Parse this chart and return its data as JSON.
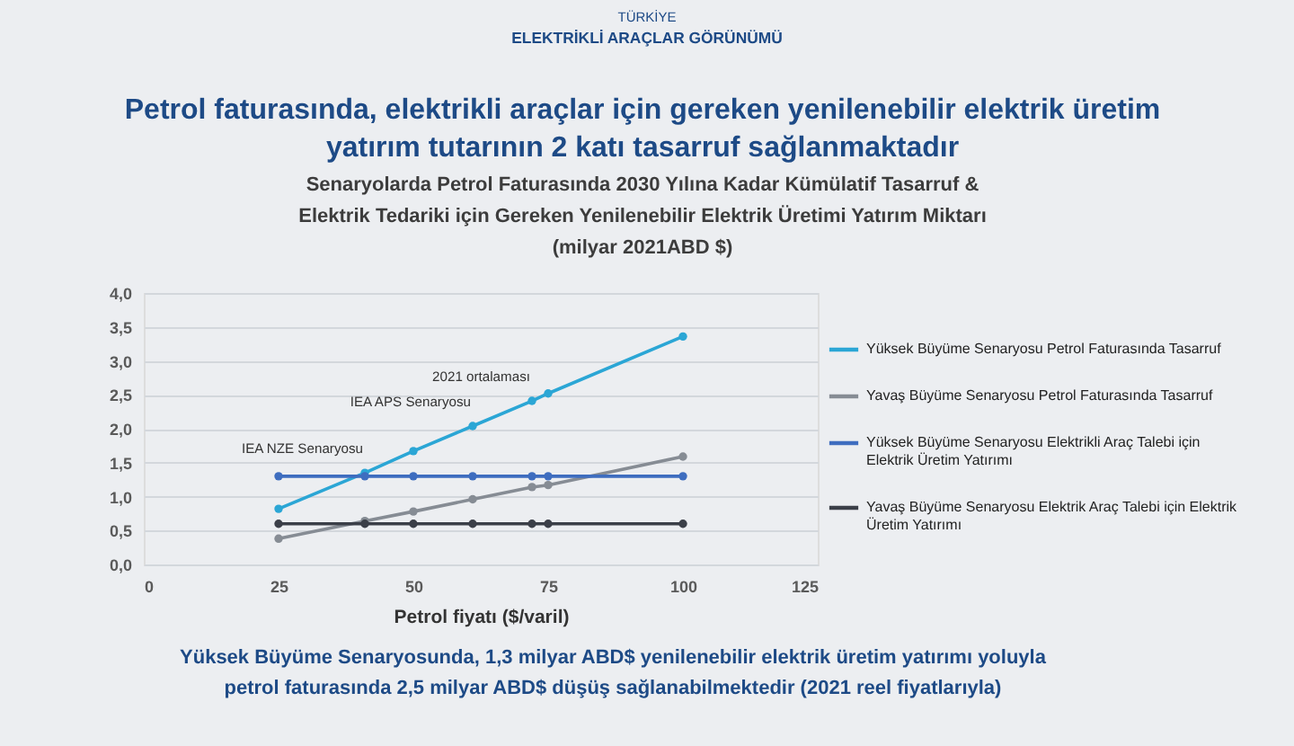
{
  "chart_data": {
    "type": "line",
    "title": "Petrol faturasında, elektrikli araçlar için gereken yenilenebilir elektrik üretim yatırım tutarının 2 katı tasarruf sağlanmaktadır",
    "subtitle": "Senaryolarda Petrol Faturasında 2030 Yılına Kadar Kümülatif Tasarruf & Elektrik Tedariki için Gereken Yenilenebilir Elektrik Üretimi Yatırım Miktarı (milyar 2021ABD $)",
    "xlabel": "Petrol fiyatı ($/varil)",
    "x": [
      25,
      41,
      50,
      61,
      72,
      75,
      100
    ],
    "series": [
      {
        "name": "Yüksek Büyüme Senaryosu Petrol Faturasında Tasarruf",
        "color": "#2ba6d5",
        "values": [
          0.82,
          1.35,
          1.67,
          2.04,
          2.41,
          2.52,
          3.36
        ]
      },
      {
        "name": "Yavaş Büyüme Senaryosu Petrol Faturasında Tasarruf",
        "color": "#868c94",
        "values": [
          0.38,
          0.64,
          0.78,
          0.96,
          1.14,
          1.17,
          1.59
        ]
      },
      {
        "name": "Yüksek Büyüme Senaryosu Elektrikli Araç Talebi için Elektrik Üretim Yatırımı",
        "color": "#3e6dbf",
        "values": [
          1.3,
          1.3,
          1.3,
          1.3,
          1.3,
          1.3,
          1.3
        ]
      },
      {
        "name": "Yavaş Büyüme Senaryosu Elektrik Araç Talebi için Elektrik Üretim Yatırımı",
        "color": "#3b3f48",
        "values": [
          0.6,
          0.6,
          0.6,
          0.6,
          0.6,
          0.6,
          0.6
        ]
      }
    ],
    "xlim": [
      0,
      125
    ],
    "xticks": [
      0,
      25,
      50,
      75,
      100,
      125
    ],
    "ylim": [
      0,
      4
    ],
    "yticks": [
      {
        "value": 0,
        "label": "0,0"
      },
      {
        "value": 0.5,
        "label": "0,5"
      },
      {
        "value": 1,
        "label": "1,0"
      },
      {
        "value": 1.5,
        "label": "1,5"
      },
      {
        "value": 2,
        "label": "2,0"
      },
      {
        "value": 2.5,
        "label": "2,5"
      },
      {
        "value": 3,
        "label": "3,0"
      },
      {
        "value": 3.5,
        "label": "3,5"
      },
      {
        "value": 4,
        "label": "4,0"
      }
    ],
    "grid": "y",
    "legend": "right",
    "marker": "circle",
    "line_style": "solid",
    "annotations": [
      "TÜRKİYE",
      "ELEKTRİKLİ ARAÇLAR GÖRÜNÜMÜ",
      {
        "text": "IEA NZE Senaryosu",
        "x": 41,
        "y": 1.35
      },
      {
        "text": "IEA APS Senaryosu",
        "x": 61,
        "y": 2.04
      },
      {
        "text": "2021 ortalaması",
        "x": 72,
        "y": 2.41
      },
      "Yüksek Büyüme Senaryosunda, 1,3 milyar ABD$ yenilenebilir elektrik üretim yatırımı yoluyla petrol faturasında 2,5 milyar ABD$ düşüş sağlanabilmektedir (2021 reel fiyatlarıyla)"
    ]
  }
}
